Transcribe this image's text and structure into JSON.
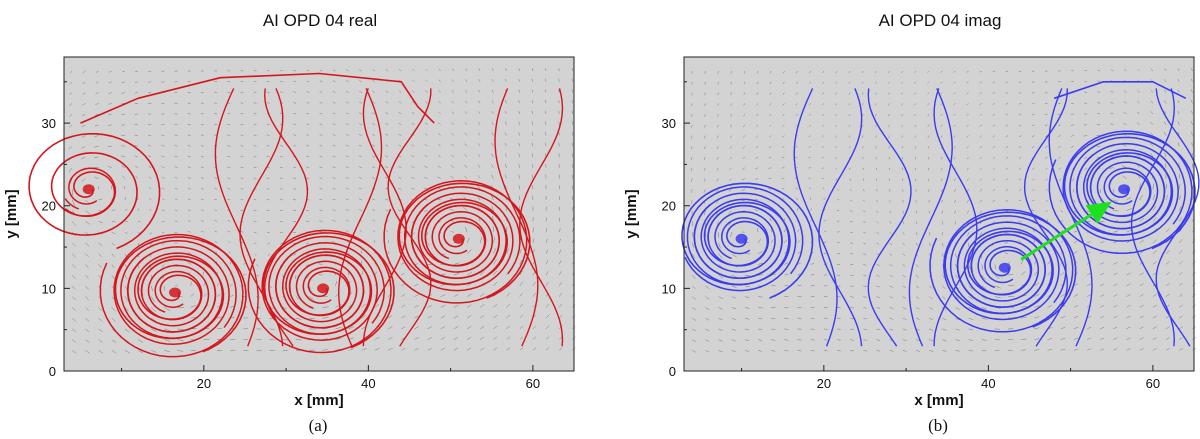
{
  "figure": {
    "colors": {
      "plot_bg": "#d3d3d3",
      "vectors": "#5a5a5a",
      "frame": "#222222"
    }
  },
  "chart_data": [
    {
      "type": "streamline",
      "title": "AI   OPD 04 real",
      "xlabel": "x [mm]",
      "ylabel": "y [mm]",
      "xlim": [
        3,
        65
      ],
      "ylim": [
        0,
        38
      ],
      "xticks": [
        20,
        40,
        60
      ],
      "yticks": [
        0,
        10,
        20,
        30
      ],
      "grid": false,
      "caption": "(a)",
      "streamline_color": "#d4161c",
      "vortex_centers": [
        {
          "x": 6,
          "y": 22
        },
        {
          "x": 16.5,
          "y": 9.5
        },
        {
          "x": 34.5,
          "y": 10
        },
        {
          "x": 51,
          "y": 16
        }
      ]
    },
    {
      "type": "streamline",
      "title": "AI   OPD 04 imag",
      "xlabel": "x [mm]",
      "ylabel": "y [mm]",
      "xlim": [
        3,
        65
      ],
      "ylim": [
        0,
        38
      ],
      "xticks": [
        20,
        40,
        60
      ],
      "yticks": [
        0,
        10,
        20,
        30
      ],
      "grid": false,
      "caption": "(b)",
      "streamline_color": "#3b3bf0",
      "vortex_centers": [
        {
          "x": 10,
          "y": 16
        },
        {
          "x": 42,
          "y": 12.5
        },
        {
          "x": 56.5,
          "y": 22
        }
      ],
      "annotation_arrow": {
        "from": {
          "x": 44,
          "y": 13.5
        },
        "to": {
          "x": 55,
          "y": 20.5
        },
        "color": "#1ee01e"
      }
    }
  ]
}
